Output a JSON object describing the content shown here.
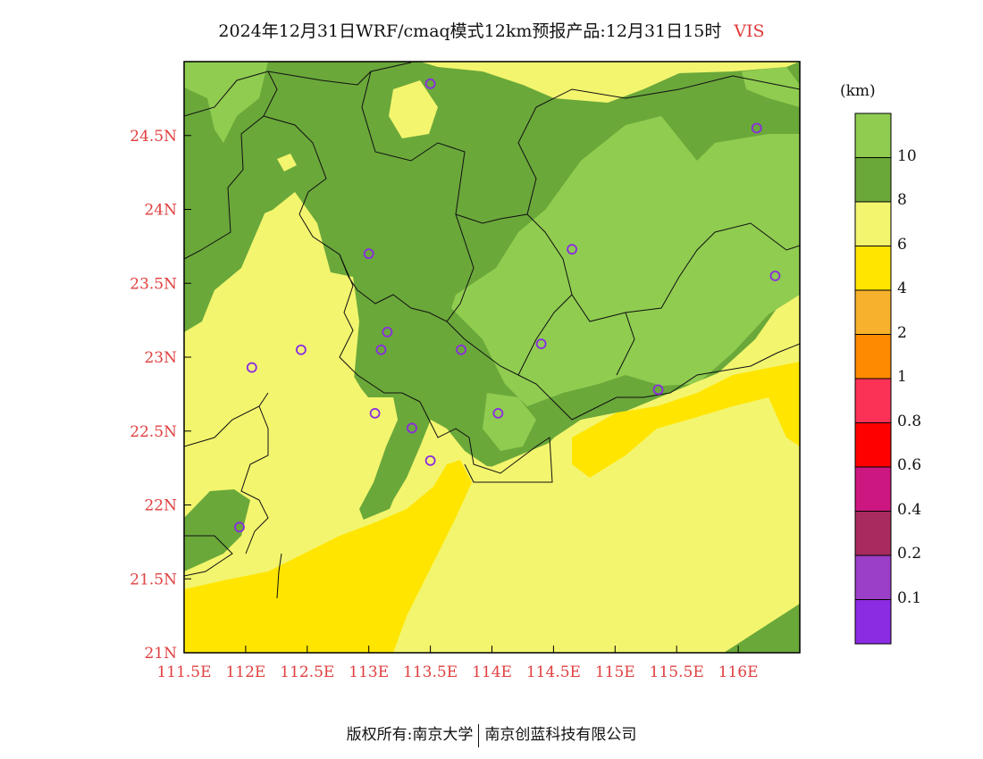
{
  "title": {
    "main": "2024年12月31日WRF/cmaq模式12km预报产品:12月31日15时",
    "variable": "VIS"
  },
  "map": {
    "x_ticks": [
      "111.5E",
      "112E",
      "112.5E",
      "113E",
      "113.5E",
      "114E",
      "114.5E",
      "115E",
      "115.5E",
      "116E"
    ],
    "y_ticks": [
      "24.5N",
      "24N",
      "23.5N",
      "23N",
      "22.5N",
      "22N",
      "21.5N",
      "21N"
    ],
    "stations": [
      {
        "lon": 113.5,
        "lat": 24.85
      },
      {
        "lon": 116.15,
        "lat": 24.55
      },
      {
        "lon": 113.0,
        "lat": 23.7
      },
      {
        "lon": 114.65,
        "lat": 23.73
      },
      {
        "lon": 116.3,
        "lat": 23.55
      },
      {
        "lon": 113.15,
        "lat": 23.17
      },
      {
        "lon": 112.05,
        "lat": 22.93
      },
      {
        "lon": 112.45,
        "lat": 23.05
      },
      {
        "lon": 113.1,
        "lat": 23.05
      },
      {
        "lon": 113.75,
        "lat": 23.05
      },
      {
        "lon": 114.4,
        "lat": 23.09
      },
      {
        "lon": 115.35,
        "lat": 22.78
      },
      {
        "lon": 113.05,
        "lat": 22.62
      },
      {
        "lon": 114.05,
        "lat": 22.62
      },
      {
        "lon": 113.35,
        "lat": 22.52
      },
      {
        "lon": 113.5,
        "lat": 22.3
      },
      {
        "lon": 111.95,
        "lat": 21.85
      }
    ]
  },
  "legend": {
    "unit": "(km)",
    "labels": [
      "10",
      "8",
      "6",
      "4",
      "2",
      "1",
      "0.8",
      "0.6",
      "0.4",
      "0.2",
      "0.1"
    ],
    "colors": [
      "#90cc50",
      "#6aa83a",
      "#f3f56e",
      "#ffe500",
      "#f7b12c",
      "#fd8a00",
      "#fb3256",
      "#fe0000",
      "#cc1780",
      "#a82b5e",
      "#9b3ec8",
      "#8b2be2"
    ]
  },
  "footer": {
    "left": "版权所有:南京大学",
    "right": "南京创蓝科技有限公司"
  }
}
